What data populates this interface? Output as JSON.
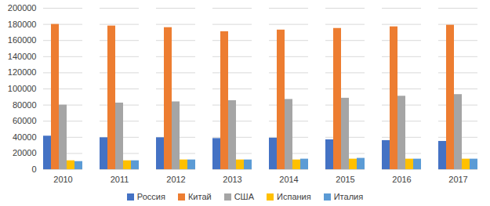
{
  "chart_data": {
    "type": "bar",
    "categories": [
      "2010",
      "2011",
      "2012",
      "2013",
      "2014",
      "2015",
      "2016",
      "2017"
    ],
    "series": [
      {
        "name": "Россия",
        "color": "#4472c4",
        "values": [
          41500,
          39500,
          39500,
          38500,
          39000,
          37000,
          36000,
          35000
        ]
      },
      {
        "name": "Китай",
        "color": "#ed7d31",
        "values": [
          180000,
          178000,
          176000,
          171000,
          173000,
          175000,
          177000,
          179000
        ]
      },
      {
        "name": "США",
        "color": "#a5a5a5",
        "values": [
          80000,
          82500,
          84000,
          85500,
          87000,
          88500,
          91000,
          93000
        ]
      },
      {
        "name": "Испания",
        "color": "#ffc000",
        "values": [
          11000,
          11000,
          12000,
          12000,
          12000,
          13000,
          13000,
          13000
        ]
      },
      {
        "name": "Италия",
        "color": "#5b9bd5",
        "values": [
          10000,
          11000,
          12000,
          12000,
          13000,
          14000,
          13000,
          13000
        ]
      }
    ],
    "ylim": [
      0,
      200000
    ],
    "yticks": [
      0,
      20000,
      40000,
      60000,
      80000,
      100000,
      120000,
      140000,
      160000,
      180000,
      200000
    ],
    "grid": true,
    "legend": "bottom"
  }
}
